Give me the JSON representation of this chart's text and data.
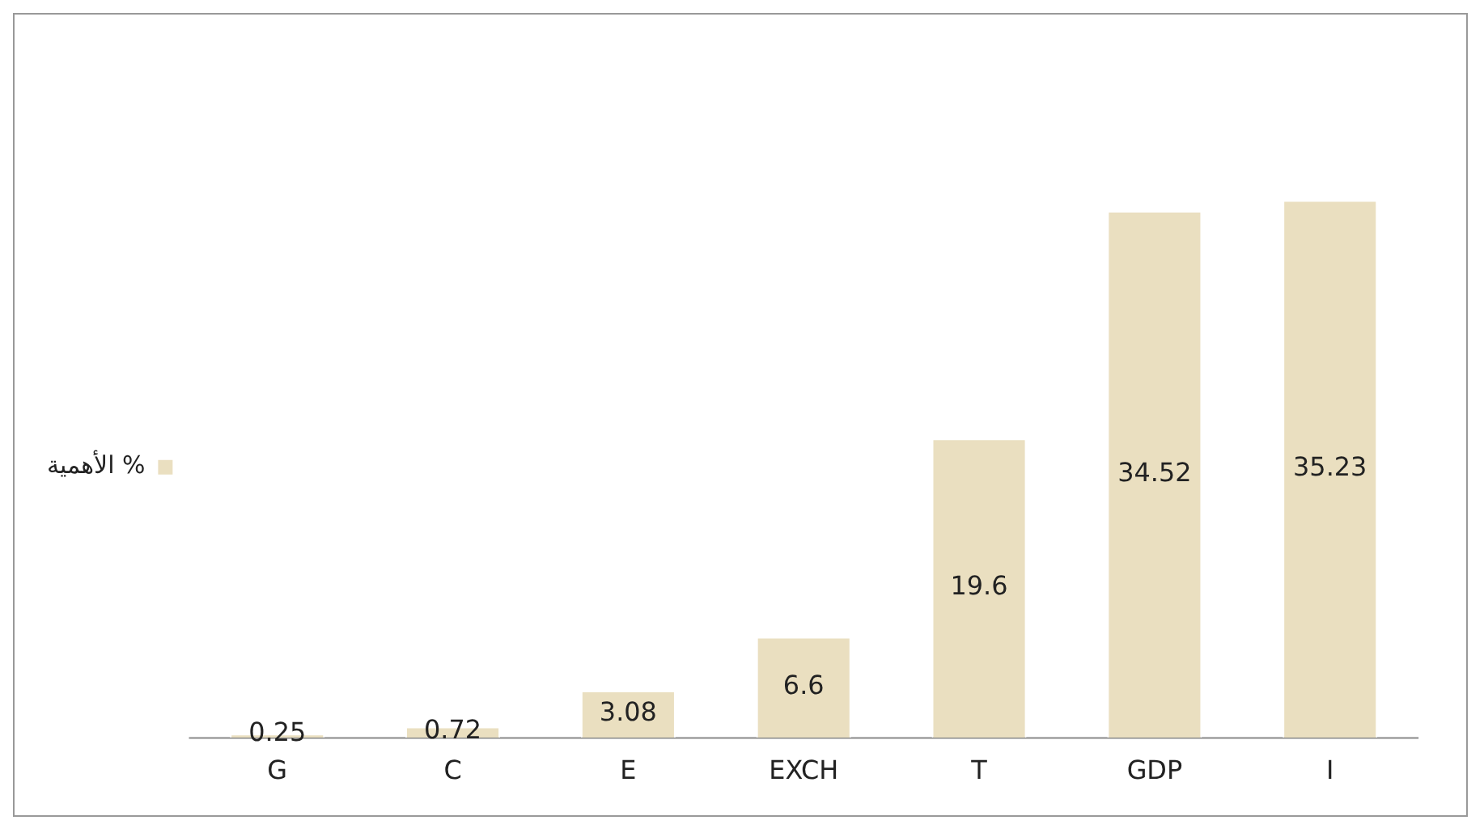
{
  "chart_data": {
    "type": "bar",
    "categories": [
      "G",
      "C",
      "E",
      "EXCH",
      "T",
      "GDP",
      "I"
    ],
    "series": [
      {
        "name": "الأهمية %",
        "color": "#eadfc0",
        "values": [
          0.25,
          0.72,
          3.08,
          6.6,
          19.6,
          34.52,
          35.23
        ]
      }
    ],
    "data_labels": true,
    "legend": "left"
  }
}
